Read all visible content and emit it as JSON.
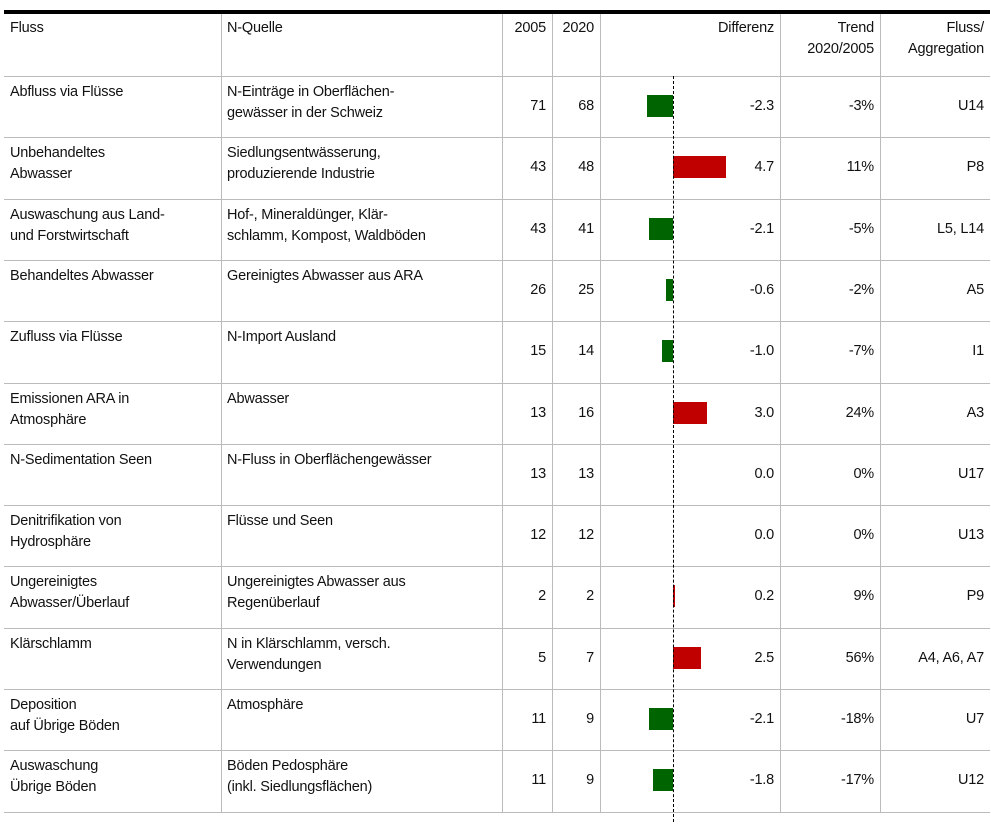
{
  "table": {
    "header": [
      "Fluss",
      "N-Quelle",
      "2005",
      "2020",
      "Differenz",
      "Trend\n2020/2005",
      "Fluss/\nAggregation"
    ],
    "rows": [
      [
        "Abfluss via Flüsse",
        "N-Einträge in Oberflächen-\ngewässer in der Schweiz",
        71,
        68,
        -2.3,
        "-3%",
        "U14"
      ],
      [
        "Unbehandeltes\nAbwasser",
        "Siedlungsentwässerung,\nproduzierende Industrie",
        43,
        48,
        4.7,
        "11%",
        "P8"
      ],
      [
        "Auswaschung aus Land-\nund Forstwirtschaft",
        "Hof-, Mineraldünger, Klär-\nschlamm, Kompost, Waldböden",
        43,
        41,
        -2.1,
        "-5%",
        "L5, L14"
      ],
      [
        "Behandeltes Abwasser",
        "Gereinigtes Abwasser aus ARA",
        26,
        25,
        -0.6,
        "-2%",
        "A5"
      ],
      [
        "Zufluss via Flüsse",
        "N-Import Ausland",
        15,
        14,
        {
          "value": -1,
          "label": "-1.0"
        },
        "-7%",
        "I1"
      ],
      [
        "Emissionen ARA in\nAtmosphäre",
        "Abwasser",
        13,
        16,
        {
          "value": 3,
          "label": "3.0"
        },
        "24%",
        "A3"
      ],
      [
        "N-Sedimentation Seen",
        "N-Fluss in Oberflächengewässer",
        13,
        13,
        {
          "value": 0,
          "label": "0.0"
        },
        "0%",
        "U17"
      ],
      [
        "Denitrifikation von\nHydrosphäre",
        "Flüsse und Seen",
        12,
        12,
        {
          "value": 0,
          "label": "0.0"
        },
        "0%",
        "U13"
      ],
      [
        "Ungereinigtes\nAbwasser/Überlauf",
        "Ungereinigtes Abwasser aus\nRegenüberlauf",
        2,
        2,
        0.2,
        "9%",
        "P9"
      ],
      [
        "Klärschlamm",
        "N in Klärschlamm, versch.\nVerwendungen",
        5,
        7,
        2.5,
        "56%",
        "A4, A6, A7"
      ],
      [
        "Deposition\nauf Übrige Böden",
        "Atmosphäre",
        11,
        9,
        -2.1,
        "-18%",
        "U7"
      ],
      [
        "Auswaschung\nÜbrige Böden",
        "Böden Pedosphäre\n(inkl. Siedlungsflächen)",
        11,
        9,
        -1.8,
        "-17%",
        "U12"
      ]
    ]
  }
}
